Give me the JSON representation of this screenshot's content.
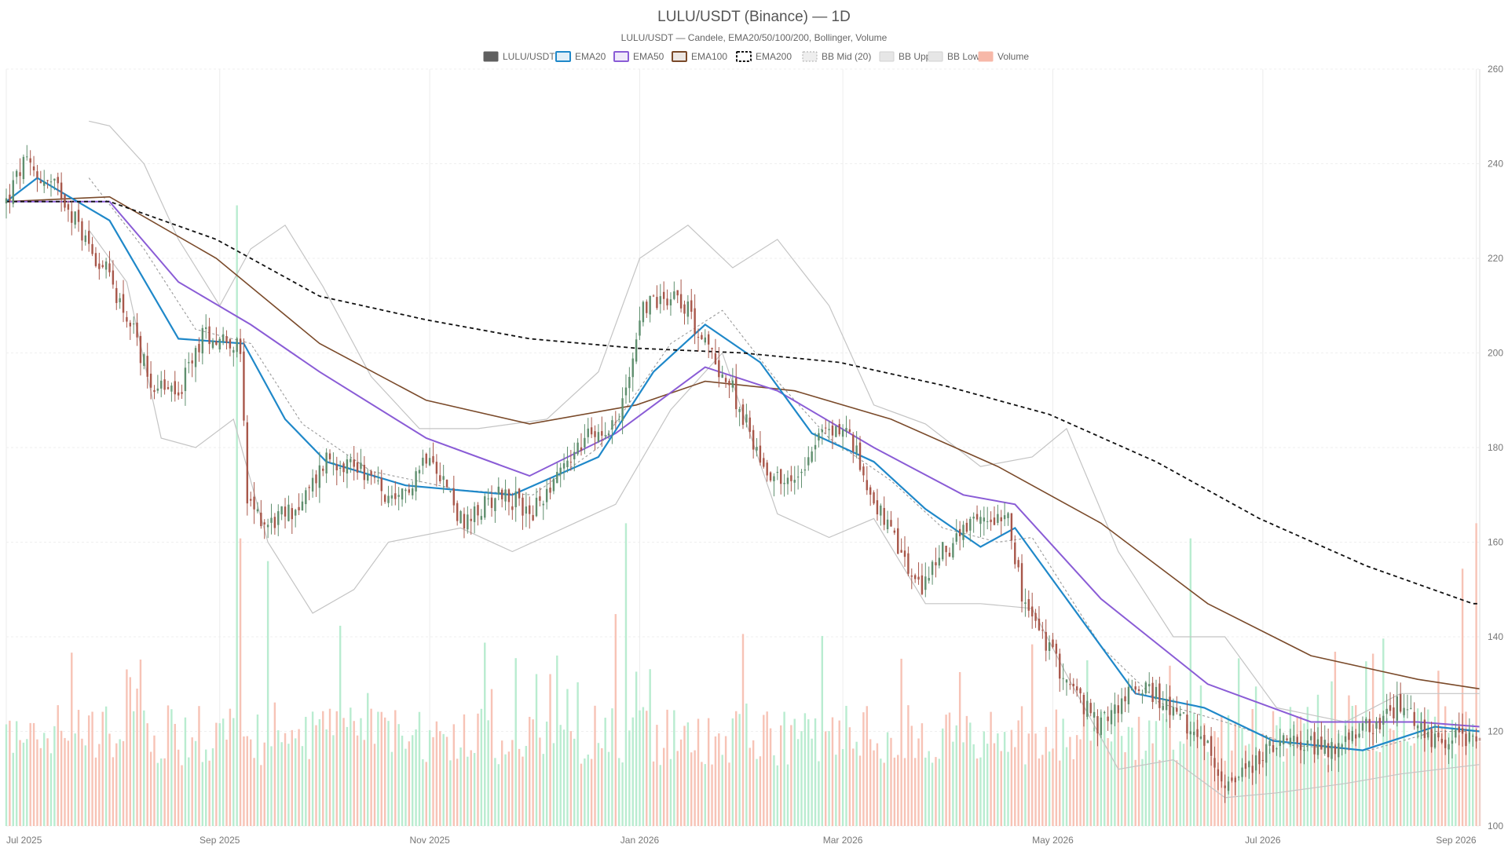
{
  "chart_data": {
    "type": "candlestick",
    "title": "LULU/USDT (Binance) — 1D",
    "subtitle": "LULU/USDT — Candele, EMA20/50/100/200, Bollinger, Volume",
    "legend": [
      {
        "label": "LULU/USDT",
        "color": "#606060",
        "style": "solid-fill"
      },
      {
        "label": "EMA20",
        "color": "#1f88c9",
        "style": "line"
      },
      {
        "label": "EMA50",
        "color": "#8a5cd6",
        "style": "line"
      },
      {
        "label": "EMA100",
        "color": "#7a4a2a",
        "style": "line"
      },
      {
        "label": "EMA200",
        "color": "#111111",
        "style": "dashed"
      },
      {
        "label": "BB Mid (20)",
        "color": "#aaaaaa",
        "style": "dotted"
      },
      {
        "label": "BB Upper",
        "color": "#bbbbbb",
        "style": "thin"
      },
      {
        "label": "BB Lower",
        "color": "#bbbbbb",
        "style": "thin"
      },
      {
        "label": "Volume",
        "color": "#f7b8a8",
        "style": "solid-fill"
      }
    ],
    "y_axis": {
      "position": "right",
      "min": 100,
      "max": 260,
      "ticks": [
        100,
        120,
        140,
        160,
        180,
        200,
        220,
        240,
        260
      ]
    },
    "x_axis": {
      "start": "2025-07-01",
      "end": "2026-09-02",
      "ticks": [
        {
          "label": "Jul 2025",
          "date": "2025-07-01"
        },
        {
          "label": "Sep 2025",
          "date": "2025-09-01"
        },
        {
          "label": "Nov 2025",
          "date": "2025-11-01"
        },
        {
          "label": "Jan 2026",
          "date": "2026-01-01"
        },
        {
          "label": "Mar 2026",
          "date": "2026-03-01"
        },
        {
          "label": "May 2026",
          "date": "2026-05-01"
        },
        {
          "label": "Jul 2026",
          "date": "2026-07-01"
        },
        {
          "label": "Sep 2026",
          "date": "2026-09-01"
        }
      ]
    },
    "colors": {
      "up": "#5f8f6e",
      "down": "#a8574a",
      "vol_up": "#b9ecd0",
      "vol_down": "#f7c3b6"
    },
    "close_path": [
      [
        "2025-07-01",
        232
      ],
      [
        "2025-07-06",
        240
      ],
      [
        "2025-07-11",
        237
      ],
      [
        "2025-07-17",
        234
      ],
      [
        "2025-07-24",
        224
      ],
      [
        "2025-07-31",
        216
      ],
      [
        "2025-08-06",
        206
      ],
      [
        "2025-08-12",
        194
      ],
      [
        "2025-08-20",
        191
      ],
      [
        "2025-08-27",
        204
      ],
      [
        "2025-09-04",
        203
      ],
      [
        "2025-09-07",
        200
      ],
      [
        "2025-09-09",
        168
      ],
      [
        "2025-09-15",
        164
      ],
      [
        "2025-09-25",
        168
      ],
      [
        "2025-10-02",
        178
      ],
      [
        "2025-10-12",
        176
      ],
      [
        "2025-10-22",
        167
      ],
      [
        "2025-11-01",
        180
      ],
      [
        "2025-11-11",
        163
      ],
      [
        "2025-11-21",
        171
      ],
      [
        "2025-12-01",
        166
      ],
      [
        "2025-12-08",
        175
      ],
      [
        "2025-12-18",
        183
      ],
      [
        "2025-12-26",
        186
      ],
      [
        "2026-01-02",
        210
      ],
      [
        "2026-01-12",
        213
      ],
      [
        "2026-01-20",
        202
      ],
      [
        "2026-01-28",
        192
      ],
      [
        "2026-02-06",
        176
      ],
      [
        "2026-02-14",
        172
      ],
      [
        "2026-02-22",
        183
      ],
      [
        "2026-03-02",
        184
      ],
      [
        "2026-03-10",
        169
      ],
      [
        "2026-03-16",
        160
      ],
      [
        "2026-03-23",
        150
      ],
      [
        "2026-03-30",
        158
      ],
      [
        "2026-04-09",
        164
      ],
      [
        "2026-04-18",
        167
      ],
      [
        "2026-04-22",
        148
      ],
      [
        "2026-05-04",
        132
      ],
      [
        "2026-05-14",
        121
      ],
      [
        "2026-05-26",
        130
      ],
      [
        "2026-06-04",
        125
      ],
      [
        "2026-06-14",
        117
      ],
      [
        "2026-06-22",
        108
      ],
      [
        "2026-07-02",
        116
      ],
      [
        "2026-07-12",
        118
      ],
      [
        "2026-07-22",
        116
      ],
      [
        "2026-08-01",
        121
      ],
      [
        "2026-08-10",
        126
      ],
      [
        "2026-08-20",
        118
      ],
      [
        "2026-09-02",
        119
      ]
    ],
    "ema200_path": [
      [
        "2025-07-01",
        232
      ],
      [
        "2025-07-31",
        232
      ],
      [
        "2025-08-31",
        224
      ],
      [
        "2025-09-30",
        212
      ],
      [
        "2025-10-31",
        207
      ],
      [
        "2025-11-30",
        203
      ],
      [
        "2025-12-31",
        201
      ],
      [
        "2026-01-31",
        200
      ],
      [
        "2026-02-28",
        198
      ],
      [
        "2026-03-31",
        193
      ],
      [
        "2026-04-30",
        187
      ],
      [
        "2026-05-31",
        177
      ],
      [
        "2026-06-30",
        165
      ],
      [
        "2026-07-31",
        155
      ],
      [
        "2026-08-31",
        147
      ],
      [
        "2026-09-02",
        147
      ]
    ],
    "ema100_path": [
      [
        "2025-07-01",
        232
      ],
      [
        "2025-07-31",
        233
      ],
      [
        "2025-08-31",
        220
      ],
      [
        "2025-09-30",
        202
      ],
      [
        "2025-10-31",
        190
      ],
      [
        "2025-11-30",
        185
      ],
      [
        "2025-12-31",
        189
      ],
      [
        "2026-01-20",
        194
      ],
      [
        "2026-02-15",
        192
      ],
      [
        "2026-03-15",
        186
      ],
      [
        "2026-04-15",
        176
      ],
      [
        "2026-05-15",
        164
      ],
      [
        "2026-06-15",
        147
      ],
      [
        "2026-07-15",
        136
      ],
      [
        "2026-08-15",
        131
      ],
      [
        "2026-09-02",
        129
      ]
    ],
    "ema50_path": [
      [
        "2025-07-01",
        232
      ],
      [
        "2025-07-31",
        232
      ],
      [
        "2025-08-20",
        215
      ],
      [
        "2025-09-10",
        206
      ],
      [
        "2025-09-30",
        196
      ],
      [
        "2025-10-31",
        182
      ],
      [
        "2025-11-30",
        174
      ],
      [
        "2025-12-25",
        183
      ],
      [
        "2026-01-20",
        197
      ],
      [
        "2026-02-10",
        192
      ],
      [
        "2026-03-10",
        180
      ],
      [
        "2026-04-05",
        170
      ],
      [
        "2026-04-20",
        168
      ],
      [
        "2026-05-15",
        148
      ],
      [
        "2026-06-15",
        130
      ],
      [
        "2026-07-15",
        122
      ],
      [
        "2026-08-15",
        122
      ],
      [
        "2026-09-02",
        121
      ]
    ],
    "ema20_path": [
      [
        "2025-07-01",
        232
      ],
      [
        "2025-07-10",
        237
      ],
      [
        "2025-07-31",
        228
      ],
      [
        "2025-08-20",
        203
      ],
      [
        "2025-09-08",
        202
      ],
      [
        "2025-09-20",
        186
      ],
      [
        "2025-10-02",
        177
      ],
      [
        "2025-10-25",
        172
      ],
      [
        "2025-11-25",
        170
      ],
      [
        "2025-12-20",
        178
      ],
      [
        "2026-01-05",
        196
      ],
      [
        "2026-01-20",
        206
      ],
      [
        "2026-02-05",
        198
      ],
      [
        "2026-02-20",
        183
      ],
      [
        "2026-03-10",
        177
      ],
      [
        "2026-03-25",
        167
      ],
      [
        "2026-04-10",
        159
      ],
      [
        "2026-04-20",
        163
      ],
      [
        "2026-05-05",
        148
      ],
      [
        "2026-05-25",
        128
      ],
      [
        "2026-06-14",
        125
      ],
      [
        "2026-07-04",
        118
      ],
      [
        "2026-07-30",
        116
      ],
      [
        "2026-08-20",
        121
      ],
      [
        "2026-09-02",
        120
      ]
    ],
    "bb_upper_path": [
      [
        "2025-07-25",
        249
      ],
      [
        "2025-07-31",
        248
      ],
      [
        "2025-08-10",
        240
      ],
      [
        "2025-08-20",
        224
      ],
      [
        "2025-09-01",
        210
      ],
      [
        "2025-09-10",
        222
      ],
      [
        "2025-09-20",
        227
      ],
      [
        "2025-10-01",
        214
      ],
      [
        "2025-10-15",
        195
      ],
      [
        "2025-10-29",
        184
      ],
      [
        "2025-11-15",
        184
      ],
      [
        "2025-12-05",
        186
      ],
      [
        "2025-12-20",
        196
      ],
      [
        "2026-01-01",
        220
      ],
      [
        "2026-01-15",
        227
      ],
      [
        "2026-01-28",
        218
      ],
      [
        "2026-02-10",
        224
      ],
      [
        "2026-02-25",
        210
      ],
      [
        "2026-03-10",
        189
      ],
      [
        "2026-03-25",
        185
      ],
      [
        "2026-04-10",
        176
      ],
      [
        "2026-04-25",
        178
      ],
      [
        "2026-05-05",
        184
      ],
      [
        "2026-05-20",
        158
      ],
      [
        "2026-06-05",
        140
      ],
      [
        "2026-06-20",
        140
      ],
      [
        "2026-07-05",
        125
      ],
      [
        "2026-07-25",
        122
      ],
      [
        "2026-08-10",
        128
      ],
      [
        "2026-09-02",
        128
      ]
    ],
    "bb_lower_path": [
      [
        "2025-07-25",
        226
      ],
      [
        "2025-08-05",
        215
      ],
      [
        "2025-08-15",
        182
      ],
      [
        "2025-08-25",
        180
      ],
      [
        "2025-09-05",
        186
      ],
      [
        "2025-09-15",
        160
      ],
      [
        "2025-09-28",
        145
      ],
      [
        "2025-10-10",
        150
      ],
      [
        "2025-10-20",
        160
      ],
      [
        "2025-11-10",
        163
      ],
      [
        "2025-11-25",
        158
      ],
      [
        "2025-12-10",
        163
      ],
      [
        "2025-12-25",
        168
      ],
      [
        "2026-01-10",
        188
      ],
      [
        "2026-01-25",
        200
      ],
      [
        "2026-02-10",
        166
      ],
      [
        "2026-02-25",
        161
      ],
      [
        "2026-03-10",
        165
      ],
      [
        "2026-03-25",
        147
      ],
      [
        "2026-04-10",
        147
      ],
      [
        "2026-04-25",
        146
      ],
      [
        "2026-05-05",
        132
      ],
      [
        "2026-05-20",
        112
      ],
      [
        "2026-06-05",
        114
      ],
      [
        "2026-06-20",
        106
      ],
      [
        "2026-07-05",
        107
      ],
      [
        "2026-07-25",
        109
      ],
      [
        "2026-08-10",
        111
      ],
      [
        "2026-09-02",
        113
      ]
    ],
    "bb_mid_path": [
      [
        "2025-07-25",
        237
      ],
      [
        "2025-08-10",
        222
      ],
      [
        "2025-08-25",
        205
      ],
      [
        "2025-09-10",
        202
      ],
      [
        "2025-09-25",
        185
      ],
      [
        "2025-10-15",
        175
      ],
      [
        "2025-11-10",
        171
      ],
      [
        "2025-12-01",
        170
      ],
      [
        "2025-12-20",
        180
      ],
      [
        "2026-01-10",
        202
      ],
      [
        "2026-01-25",
        209
      ],
      [
        "2026-02-10",
        194
      ],
      [
        "2026-02-25",
        182
      ],
      [
        "2026-03-15",
        173
      ],
      [
        "2026-03-30",
        163
      ],
      [
        "2026-04-15",
        160
      ],
      [
        "2026-04-25",
        161
      ],
      [
        "2026-05-15",
        138
      ],
      [
        "2026-06-01",
        126
      ],
      [
        "2026-06-20",
        122
      ],
      [
        "2026-07-10",
        117
      ],
      [
        "2026-08-01",
        116
      ],
      [
        "2026-08-20",
        120
      ],
      [
        "2026-09-02",
        120
      ]
    ],
    "volume_spikes": [
      [
        "2025-09-06",
        0.82
      ],
      [
        "2025-09-07",
        0.38
      ],
      [
        "2025-09-15",
        0.35
      ],
      [
        "2025-12-25",
        0.28
      ],
      [
        "2025-12-28",
        0.4
      ],
      [
        "2026-04-25",
        0.24
      ],
      [
        "2026-06-10",
        0.38
      ],
      [
        "2026-08-28",
        0.34
      ],
      [
        "2026-09-01",
        0.4
      ]
    ]
  }
}
